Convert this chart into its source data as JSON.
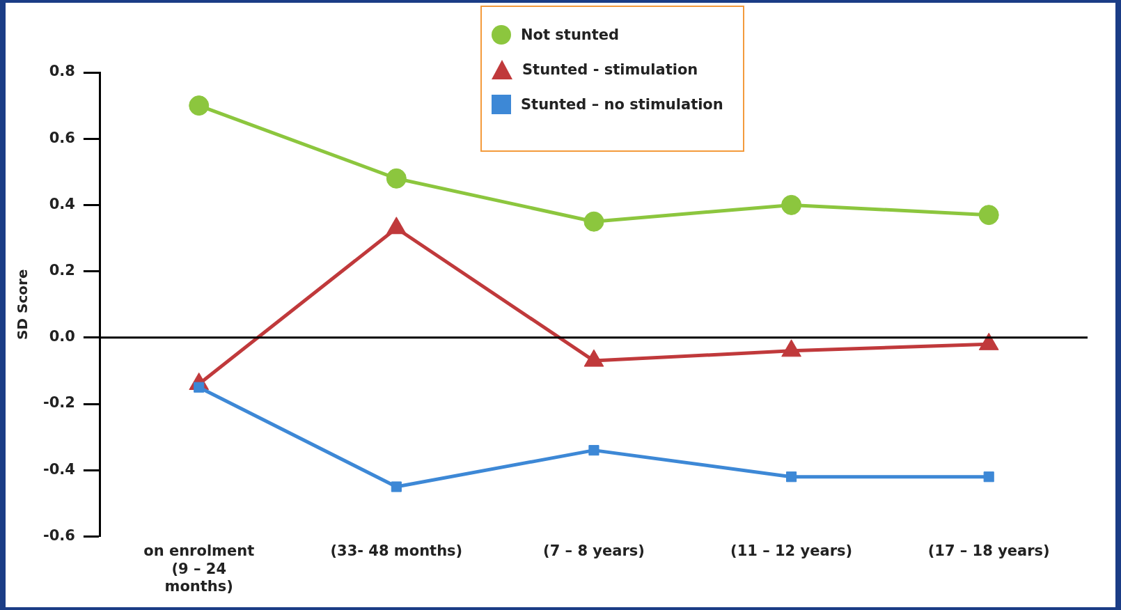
{
  "chart_data": {
    "type": "line",
    "ylabel": "SD Score",
    "categories": [
      "on enrolment\n(9 – 24\nmonths)",
      "(33- 48 months)",
      "(7 – 8 years)",
      "(11 – 12 years)",
      "(17 – 18 years)"
    ],
    "series": [
      {
        "name": "Not stunted",
        "color": "#8cc63e",
        "marker": "circle",
        "values": [
          0.7,
          0.48,
          0.35,
          0.4,
          0.37
        ]
      },
      {
        "name": "Stunted - stimulation",
        "color": "#c0393b",
        "marker": "triangle",
        "values": [
          -0.14,
          0.33,
          -0.07,
          -0.04,
          -0.02
        ]
      },
      {
        "name": "Stunted – no stimulation",
        "color": "#3d88d6",
        "marker": "square",
        "values": [
          -0.15,
          -0.45,
          -0.34,
          -0.42,
          -0.42
        ]
      }
    ],
    "ylim": [
      -0.6,
      0.8
    ],
    "yticks": [
      {
        "value": -0.6,
        "label": "-0.6"
      },
      {
        "value": -0.4,
        "label": "-0.4"
      },
      {
        "value": -0.2,
        "label": "-0.2"
      },
      {
        "value": 0,
        "label": "0.0"
      },
      {
        "value": 0.2,
        "label": "0.2"
      },
      {
        "value": 0.4,
        "label": "0.4"
      },
      {
        "value": 0.6,
        "label": "0.6"
      },
      {
        "value": 0.8,
        "label": "0.8"
      }
    ],
    "ref_lines": [
      {
        "axis": "y",
        "value": 0,
        "color": "#000000"
      }
    ],
    "legend": "top",
    "grid": false,
    "line_style": "solid"
  }
}
